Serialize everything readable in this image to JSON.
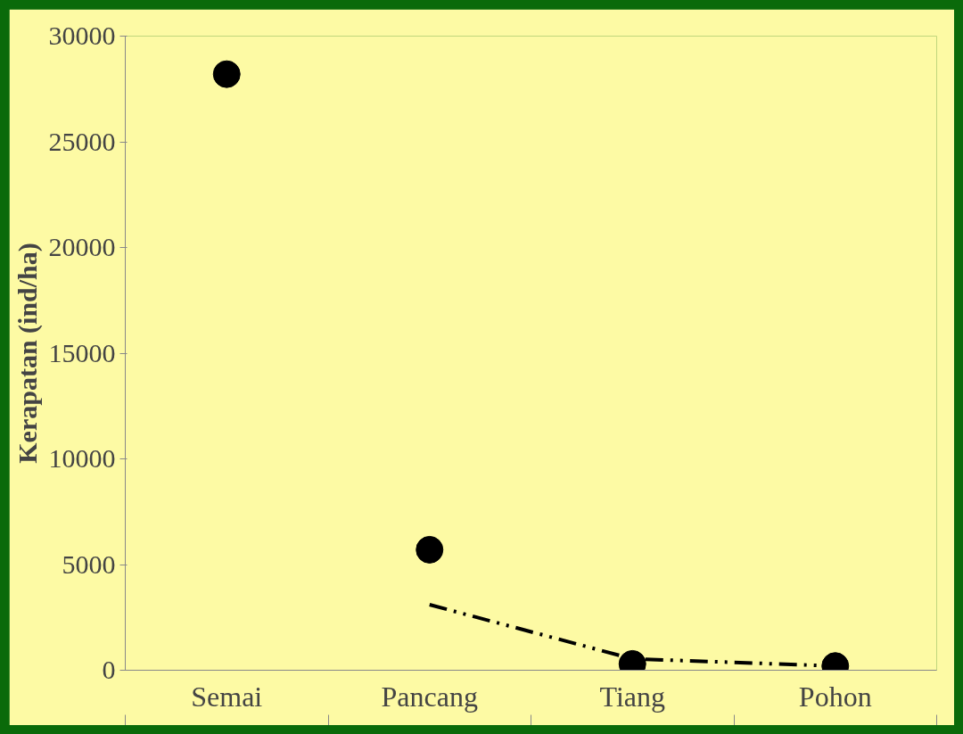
{
  "chart_data": {
    "type": "scatter",
    "ylabel": "Kerapatan (ind/ha)",
    "categories": [
      "Semai",
      "Pancang",
      "Tiang",
      "Pohon"
    ],
    "series": [
      {
        "color": "#000000",
        "marker": "circle",
        "values": [
          28200,
          5700,
          300,
          200
        ]
      },
      {
        "type": "line",
        "color": "#000000",
        "line_style": "dashed",
        "marker": "none",
        "values": [
          null,
          3100,
          540,
          200
        ]
      }
    ],
    "ylim": [
      0,
      30000
    ],
    "yticks": [
      0,
      5000,
      10000,
      15000,
      20000,
      25000,
      30000
    ],
    "grid": false
  }
}
